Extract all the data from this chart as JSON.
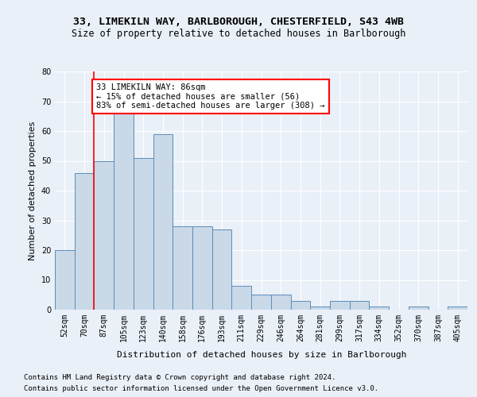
{
  "title1": "33, LIMEKILN WAY, BARLBOROUGH, CHESTERFIELD, S43 4WB",
  "title2": "Size of property relative to detached houses in Barlborough",
  "xlabel": "Distribution of detached houses by size in Barlborough",
  "ylabel": "Number of detached properties",
  "categories": [
    "52sqm",
    "70sqm",
    "87sqm",
    "105sqm",
    "123sqm",
    "140sqm",
    "158sqm",
    "176sqm",
    "193sqm",
    "211sqm",
    "229sqm",
    "246sqm",
    "264sqm",
    "281sqm",
    "299sqm",
    "317sqm",
    "334sqm",
    "352sqm",
    "370sqm",
    "387sqm",
    "405sqm"
  ],
  "values": [
    20,
    46,
    50,
    66,
    51,
    59,
    28,
    28,
    27,
    8,
    5,
    5,
    3,
    1,
    3,
    3,
    1,
    0,
    1,
    0,
    1
  ],
  "bar_color": "#c9d9e8",
  "bar_edge_color": "#5b8db8",
  "red_line_index": 2,
  "annotation_text": "33 LIMEKILN WAY: 86sqm\n← 15% of detached houses are smaller (56)\n83% of semi-detached houses are larger (308) →",
  "annotation_box_color": "white",
  "annotation_box_edge_color": "red",
  "ylim": [
    0,
    80
  ],
  "yticks": [
    0,
    10,
    20,
    30,
    40,
    50,
    60,
    70,
    80
  ],
  "footer1": "Contains HM Land Registry data © Crown copyright and database right 2024.",
  "footer2": "Contains public sector information licensed under the Open Government Licence v3.0.",
  "background_color": "#eaf0f8",
  "plot_background_color": "#eaf0f8",
  "grid_color": "white",
  "title1_fontsize": 9.5,
  "title2_fontsize": 8.5,
  "axis_label_fontsize": 8,
  "tick_fontsize": 7,
  "annotation_fontsize": 7.5,
  "footer_fontsize": 6.5
}
